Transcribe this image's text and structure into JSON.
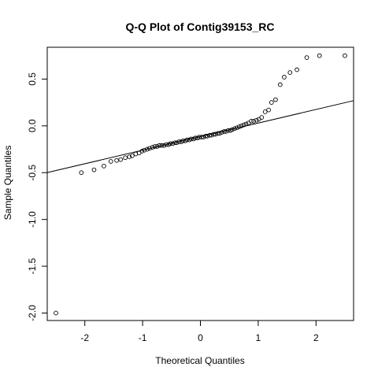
{
  "chart_data": {
    "type": "scatter",
    "title": "Q-Q Plot of Contig39153_RC",
    "xlabel": "Theoretical Quantiles",
    "ylabel": "Sample Quantiles",
    "xlim": [
      -2.65,
      2.65
    ],
    "ylim": [
      -2.08,
      0.84
    ],
    "x_ticks": [
      -2,
      -1,
      0,
      1,
      2
    ],
    "x_tick_labels": [
      "-2",
      "-1",
      "0",
      "1",
      "2"
    ],
    "y_ticks": [
      -2.0,
      -1.5,
      -1.0,
      -0.5,
      0.0,
      0.5
    ],
    "y_tick_labels": [
      "-2.0",
      "-1.5",
      "-1.0",
      "-0.5",
      "0.0",
      "0.5"
    ],
    "grid": false,
    "legend": "none",
    "reference_line": {
      "intercept": -0.115,
      "slope": 0.145
    },
    "points": {
      "x": [
        -2.5,
        -2.06,
        -1.84,
        -1.67,
        -1.55,
        -1.45,
        -1.38,
        -1.3,
        -1.23,
        -1.18,
        -1.12,
        -1.06,
        -1.01,
        -0.97,
        -0.92,
        -0.88,
        -0.83,
        -0.79,
        -0.75,
        -0.71,
        -0.67,
        -0.63,
        -0.59,
        -0.55,
        -0.52,
        -0.48,
        -0.44,
        -0.41,
        -0.37,
        -0.33,
        -0.3,
        -0.26,
        -0.23,
        -0.19,
        -0.16,
        -0.12,
        -0.09,
        -0.05,
        -0.02,
        0.02,
        0.05,
        0.09,
        0.12,
        0.16,
        0.19,
        0.23,
        0.26,
        0.3,
        0.33,
        0.37,
        0.41,
        0.44,
        0.48,
        0.52,
        0.55,
        0.59,
        0.63,
        0.67,
        0.71,
        0.75,
        0.79,
        0.83,
        0.88,
        0.92,
        0.97,
        1.01,
        1.06,
        1.12,
        1.18,
        1.23,
        1.3,
        1.38,
        1.45,
        1.55,
        1.67,
        1.84,
        2.06,
        2.5
      ],
      "y": [
        -2.0,
        -0.5,
        -0.47,
        -0.43,
        -0.38,
        -0.37,
        -0.36,
        -0.34,
        -0.33,
        -0.32,
        -0.3,
        -0.29,
        -0.27,
        -0.26,
        -0.25,
        -0.24,
        -0.23,
        -0.22,
        -0.22,
        -0.21,
        -0.21,
        -0.21,
        -0.2,
        -0.2,
        -0.19,
        -0.19,
        -0.18,
        -0.18,
        -0.17,
        -0.17,
        -0.16,
        -0.16,
        -0.15,
        -0.15,
        -0.14,
        -0.14,
        -0.13,
        -0.13,
        -0.12,
        -0.12,
        -0.12,
        -0.11,
        -0.11,
        -0.1,
        -0.1,
        -0.09,
        -0.09,
        -0.08,
        -0.08,
        -0.07,
        -0.06,
        -0.06,
        -0.05,
        -0.05,
        -0.04,
        -0.03,
        -0.02,
        -0.01,
        0.0,
        0.01,
        0.02,
        0.03,
        0.05,
        0.05,
        0.06,
        0.07,
        0.09,
        0.15,
        0.17,
        0.25,
        0.28,
        0.44,
        0.52,
        0.57,
        0.6,
        0.73,
        0.75,
        0.75
      ]
    }
  }
}
